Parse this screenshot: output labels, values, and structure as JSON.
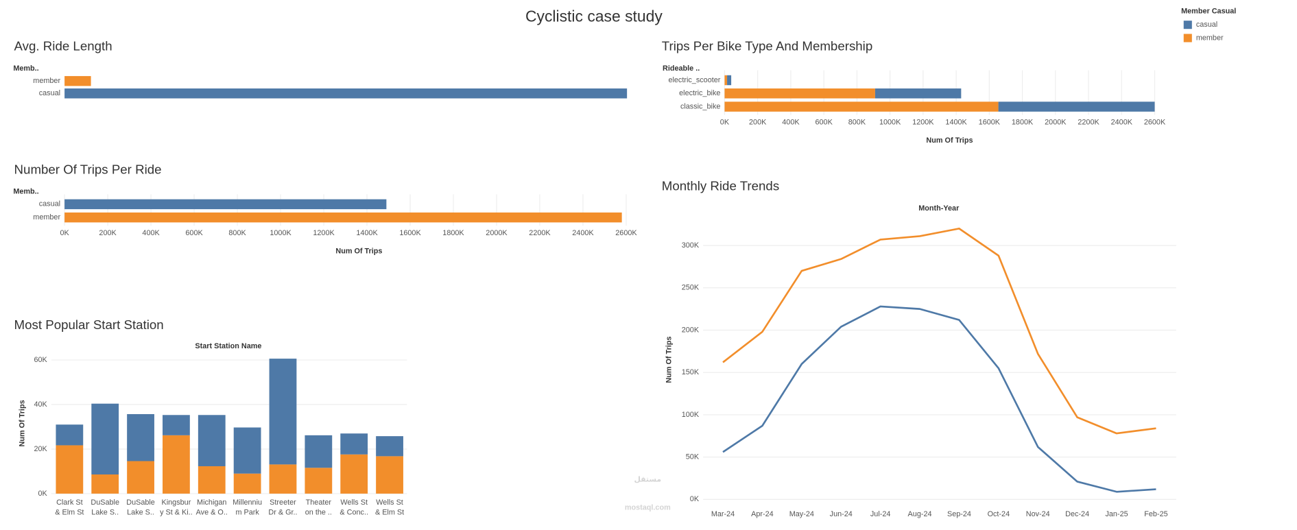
{
  "dashboard": {
    "title": "Cyclistic case study",
    "legend": {
      "title": "Member Casual",
      "entries": [
        {
          "name": "casual",
          "color": "#4e79a7"
        },
        {
          "name": "member",
          "color": "#f28e2b"
        }
      ]
    },
    "watermark": {
      "arabic": "مستقل",
      "latin": "mostaql.com"
    }
  },
  "chart_data": [
    {
      "type": "hbar",
      "title": "Avg. Ride Length",
      "y_header": "Memb..",
      "categories": [
        "member",
        "casual"
      ],
      "values": [
        122,
        2600
      ],
      "colors": [
        "#f28e2b",
        "#4e79a7"
      ],
      "xlim": [
        0,
        2600
      ]
    },
    {
      "type": "stacked_hbar",
      "title": "Trips Per Bike Type And Membership",
      "y_header": "Rideable ..",
      "x_label": "Num Of Trips",
      "categories": [
        "electric_scooter",
        "electric_bike",
        "classic_bike"
      ],
      "series": [
        {
          "name": "member",
          "color": "#f28e2b",
          "values": [
            15000,
            910000,
            1655000
          ]
        },
        {
          "name": "casual",
          "color": "#4e79a7",
          "values": [
            25000,
            520000,
            945000
          ]
        }
      ],
      "xlim": [
        0,
        2600000
      ],
      "xticks": [
        {
          "value": 0,
          "label": "0K"
        },
        {
          "value": 200000,
          "label": "200K"
        },
        {
          "value": 400000,
          "label": "400K"
        },
        {
          "value": 600000,
          "label": "600K"
        },
        {
          "value": 800000,
          "label": "800K"
        },
        {
          "value": 1000000,
          "label": "1000K"
        },
        {
          "value": 1200000,
          "label": "1200K"
        },
        {
          "value": 1400000,
          "label": "1400K"
        },
        {
          "value": 1600000,
          "label": "1600K"
        },
        {
          "value": 1800000,
          "label": "1800K"
        },
        {
          "value": 2000000,
          "label": "2000K"
        },
        {
          "value": 2200000,
          "label": "2200K"
        },
        {
          "value": 2400000,
          "label": "2400K"
        },
        {
          "value": 2600000,
          "label": "2600K"
        }
      ]
    },
    {
      "type": "hbar",
      "title": "Number Of Trips Per Ride",
      "y_header": "Memb..",
      "x_label": "Num Of Trips",
      "categories": [
        "casual",
        "member"
      ],
      "values": [
        1490000,
        2580000
      ],
      "colors": [
        "#4e79a7",
        "#f28e2b"
      ],
      "xlim": [
        0,
        2600000
      ],
      "xticks": [
        {
          "value": 0,
          "label": "0K"
        },
        {
          "value": 200000,
          "label": "200K"
        },
        {
          "value": 400000,
          "label": "400K"
        },
        {
          "value": 600000,
          "label": "600K"
        },
        {
          "value": 800000,
          "label": "800K"
        },
        {
          "value": 1000000,
          "label": "1000K"
        },
        {
          "value": 1200000,
          "label": "1200K"
        },
        {
          "value": 1400000,
          "label": "1400K"
        },
        {
          "value": 1600000,
          "label": "1600K"
        },
        {
          "value": 1800000,
          "label": "1800K"
        },
        {
          "value": 2000000,
          "label": "2000K"
        },
        {
          "value": 2200000,
          "label": "2200K"
        },
        {
          "value": 2400000,
          "label": "2400K"
        },
        {
          "value": 2600000,
          "label": "2600K"
        }
      ]
    },
    {
      "type": "stacked_bar",
      "title": "Most Popular Start Station",
      "x_header": "Start Station Name",
      "y_label": "Num Of Trips",
      "categories": [
        [
          "Clark St",
          "& Elm St"
        ],
        [
          "DuSable",
          "Lake S.."
        ],
        [
          "DuSable",
          "Lake S.."
        ],
        [
          "Kingsbur",
          "y St & Ki.."
        ],
        [
          "Michigan",
          "Ave & O.."
        ],
        [
          "Millenniu",
          "m Park"
        ],
        [
          "Streeter",
          "Dr & Gr.."
        ],
        [
          "Theater",
          "on the .."
        ],
        [
          "Wells St",
          "& Conc.."
        ],
        [
          "Wells St",
          "& Elm St"
        ]
      ],
      "series": [
        {
          "name": "member",
          "color": "#f28e2b",
          "values": [
            21700,
            8600,
            14600,
            26200,
            12300,
            9000,
            13100,
            11600,
            17600,
            16800
          ]
        },
        {
          "name": "casual",
          "color": "#4e79a7",
          "values": [
            9300,
            31800,
            21100,
            9100,
            23000,
            20700,
            47500,
            14600,
            9400,
            9000
          ]
        }
      ],
      "ylim": [
        0,
        62000
      ],
      "yticks": [
        {
          "value": 0,
          "label": "0K"
        },
        {
          "value": 20000,
          "label": "20K"
        },
        {
          "value": 40000,
          "label": "40K"
        },
        {
          "value": 60000,
          "label": "60K"
        }
      ],
      "grid": true
    },
    {
      "type": "line",
      "title": "Monthly Ride Trends",
      "x_header": "Month-Year",
      "y_label": "Num Of Trips",
      "categories": [
        "Mar-24",
        "Apr-24",
        "May-24",
        "Jun-24",
        "Jul-24",
        "Aug-24",
        "Sep-24",
        "Oct-24",
        "Nov-24",
        "Dec-24",
        "Jan-25",
        "Feb-25"
      ],
      "series": [
        {
          "name": "member",
          "color": "#f28e2b",
          "values": [
            162000,
            198000,
            270000,
            284000,
            307000,
            311000,
            320000,
            288000,
            172000,
            97000,
            78000,
            84000
          ]
        },
        {
          "name": "casual",
          "color": "#4e79a7",
          "values": [
            56000,
            87000,
            160000,
            204000,
            228000,
            225000,
            212000,
            155000,
            62000,
            21000,
            9000,
            12000
          ]
        }
      ],
      "ylim": [
        0,
        338000
      ],
      "yticks": [
        {
          "value": 0,
          "label": "0K"
        },
        {
          "value": 50000,
          "label": "50K"
        },
        {
          "value": 100000,
          "label": "100K"
        },
        {
          "value": 150000,
          "label": "150K"
        },
        {
          "value": 200000,
          "label": "200K"
        },
        {
          "value": 250000,
          "label": "250K"
        },
        {
          "value": 300000,
          "label": "300K"
        }
      ],
      "grid": true
    }
  ]
}
